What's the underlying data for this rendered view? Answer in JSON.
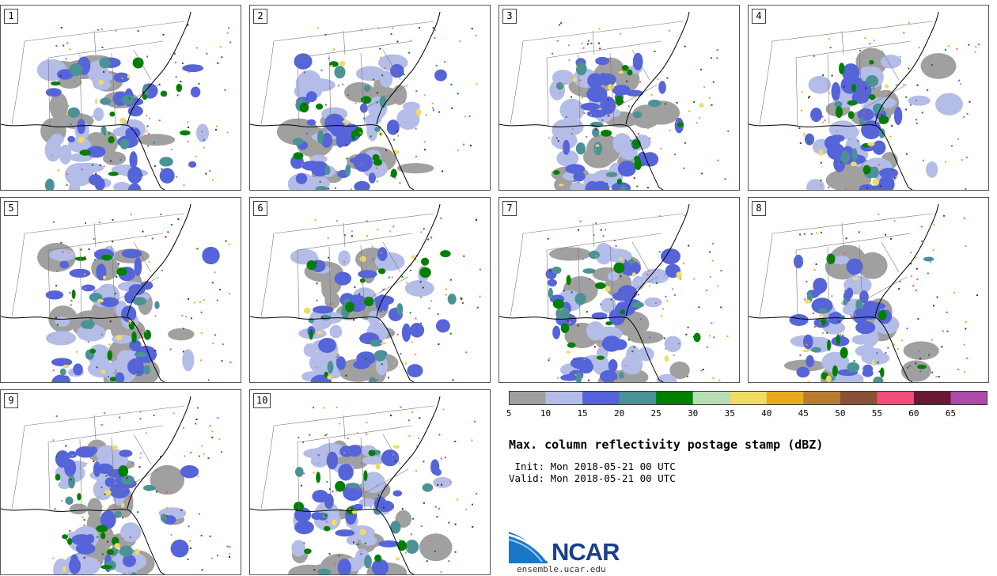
{
  "panels": [
    {
      "label": "1"
    },
    {
      "label": "2"
    },
    {
      "label": "3"
    },
    {
      "label": "4"
    },
    {
      "label": "5"
    },
    {
      "label": "6"
    },
    {
      "label": "7"
    },
    {
      "label": "8"
    },
    {
      "label": "9"
    },
    {
      "label": "10"
    }
  ],
  "colorbar": {
    "colors": [
      "#a0a0a0",
      "#b4bce8",
      "#5564d8",
      "#4b9296",
      "#007f00",
      "#b8dcb4",
      "#eedc64",
      "#eaaa20",
      "#b87c30",
      "#8a5038",
      "#ef4f78",
      "#6a1838",
      "#aa4ca8"
    ],
    "ticks": [
      "5",
      "10",
      "15",
      "20",
      "25",
      "30",
      "35",
      "40",
      "45",
      "50",
      "55",
      "60",
      "65"
    ]
  },
  "title": "Max. column reflectivity postage stamp (dBZ)",
  "init_line": " Init: Mon 2018-05-21 00 UTC",
  "valid_line": "Valid: Mon 2018-05-21 00 UTC",
  "logo": {
    "word": "NCAR",
    "url": "ensemble.ucar.edu"
  }
}
